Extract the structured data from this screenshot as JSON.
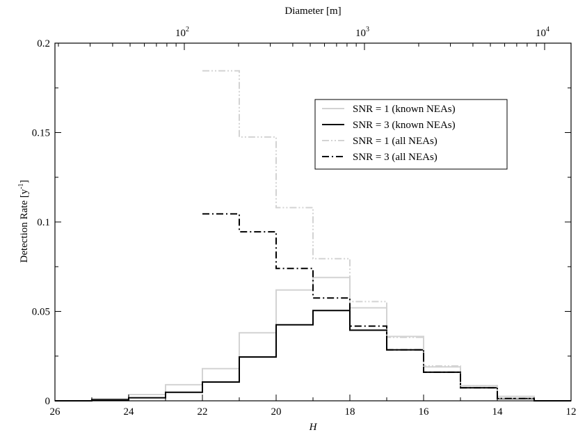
{
  "chart_data": {
    "type": "line",
    "step": true,
    "xlabel": "H",
    "ylabel": "Detection Rate [y",
    "ylabel_sup": "-1",
    "ylabel_end": "]",
    "top_axis_label": "Diameter [m]",
    "top_ticks": [
      {
        "base": "10",
        "exp": "2",
        "value": 100
      },
      {
        "base": "10",
        "exp": "3",
        "value": 1000
      },
      {
        "base": "10",
        "exp": "4",
        "value": 10000
      }
    ],
    "xlim": [
      26,
      12
    ],
    "ylim": [
      0,
      0.2
    ],
    "x_ticks": [
      {
        "value": 26,
        "label": "26"
      },
      {
        "value": 24,
        "label": "24"
      },
      {
        "value": 22,
        "label": "22"
      },
      {
        "value": 20,
        "label": "20"
      },
      {
        "value": 18,
        "label": "18"
      },
      {
        "value": 16,
        "label": "16"
      },
      {
        "value": 14,
        "label": "14"
      },
      {
        "value": 12,
        "label": "12"
      }
    ],
    "y_ticks": [
      {
        "value": 0,
        "label": "0"
      },
      {
        "value": 0.05,
        "label": "0.05"
      },
      {
        "value": 0.1,
        "label": "0.1"
      },
      {
        "value": 0.15,
        "label": "0.15"
      },
      {
        "value": 0.2,
        "label": "0.2"
      }
    ],
    "legend_position": "top-right",
    "series": [
      {
        "name": "SNR = 1 (known NEAs)",
        "color": "#d3d3d3",
        "dash": "solid",
        "bin_edges": [
          26,
          25,
          24,
          23,
          22,
          21,
          20,
          19,
          18,
          17,
          16,
          15,
          14,
          13,
          12
        ],
        "values": [
          0.0,
          0.0012,
          0.0035,
          0.009,
          0.018,
          0.038,
          0.062,
          0.069,
          0.052,
          0.036,
          0.019,
          0.0085,
          0.0025,
          0.0
        ]
      },
      {
        "name": "SNR = 3 (known NEAs)",
        "color": "#000000",
        "dash": "solid",
        "bin_edges": [
          26,
          25,
          24,
          23,
          22,
          21,
          20,
          19,
          18,
          17,
          16,
          15,
          14,
          13,
          12
        ],
        "values": [
          0.0,
          0.0006,
          0.0017,
          0.0048,
          0.0105,
          0.0245,
          0.0425,
          0.0505,
          0.0395,
          0.0285,
          0.016,
          0.0073,
          0.0013,
          0.0
        ]
      },
      {
        "name": "SNR = 1 (all NEAs)",
        "color": "#d3d3d3",
        "dash": "dashdotdot",
        "bin_edges": [
          22,
          21,
          20,
          19,
          18,
          17,
          16,
          15,
          14,
          13
        ],
        "values": [
          0.1845,
          0.1475,
          0.108,
          0.0795,
          0.0555,
          0.0355,
          0.0195,
          0.0085,
          0.0015
        ]
      },
      {
        "name": "SNR = 3 (all NEAs)",
        "color": "#000000",
        "dash": "dashdot",
        "bin_edges": [
          22,
          21,
          20,
          19,
          18,
          17,
          16,
          15,
          14,
          13
        ],
        "values": [
          0.1045,
          0.0945,
          0.074,
          0.0575,
          0.0418,
          0.0285,
          0.016,
          0.0073,
          0.0013
        ]
      }
    ]
  }
}
